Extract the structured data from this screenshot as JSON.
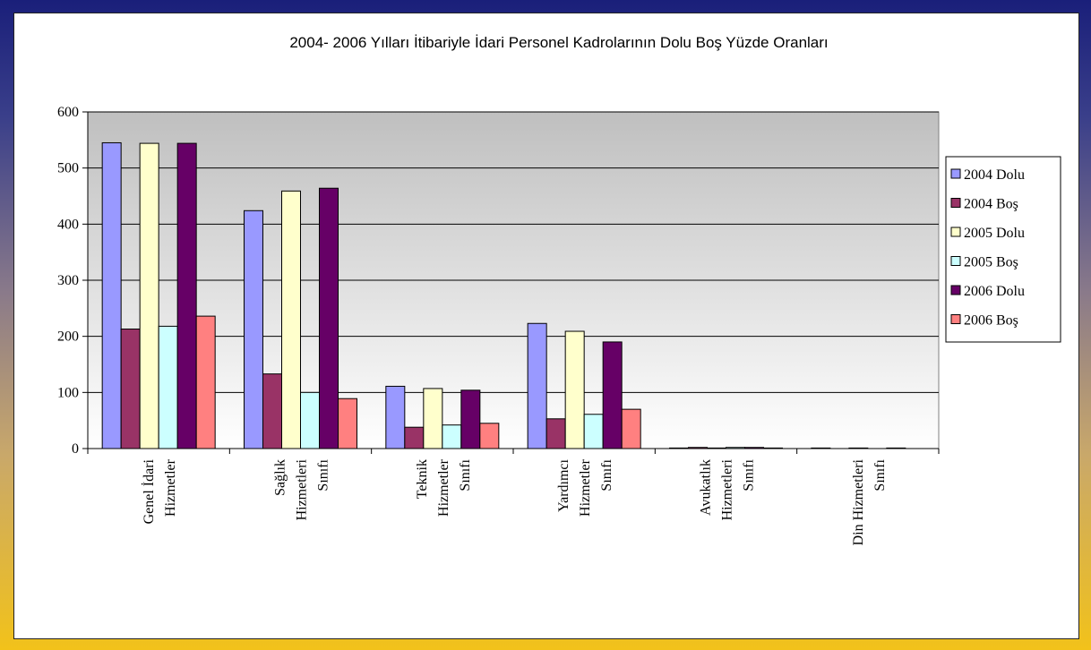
{
  "chart_data": {
    "type": "bar",
    "title": "2004- 2006 Yılları İtibariyle İdari Personel Kadrolarının  Dolu Boş Yüzde Oranları",
    "xlabel": "",
    "ylabel": "",
    "ylim": [
      0,
      600
    ],
    "yticks": [
      "0",
      "100",
      "200",
      "300",
      "400",
      "500",
      "600"
    ],
    "grid": true,
    "legend_position": "right",
    "categories": [
      [
        "Genel İdari",
        "Hizmetler"
      ],
      [
        "Sağlık",
        "Hizmetleri",
        "Sınıfı"
      ],
      [
        "Teknik",
        "Hizmetler",
        "Sınıfı"
      ],
      [
        "Yardımcı",
        "Hizmetler",
        "Sınıfı"
      ],
      [
        "Avukatlık",
        "Hizmetleri",
        "Sınıfı"
      ],
      [
        "Din Hizmetleri",
        "Sınıfı"
      ]
    ],
    "series": [
      {
        "name": "2004 Dolu",
        "color": "#9999ff",
        "values": [
          545,
          424,
          111,
          223,
          1,
          1
        ]
      },
      {
        "name": "2004 Boş",
        "color": "#993366",
        "values": [
          213,
          133,
          38,
          53,
          2,
          0
        ]
      },
      {
        "name": "2005 Dolu",
        "color": "#ffffcc",
        "values": [
          544,
          459,
          107,
          209,
          1,
          1
        ]
      },
      {
        "name": "2005 Boş",
        "color": "#ccffff",
        "values": [
          218,
          100,
          42,
          61,
          2,
          0
        ]
      },
      {
        "name": "2006 Dolu",
        "color": "#660066",
        "values": [
          544,
          464,
          104,
          190,
          2,
          1
        ]
      },
      {
        "name": "2006 Boş",
        "color": "#ff8080",
        "values": [
          236,
          89,
          45,
          70,
          1,
          0
        ]
      }
    ]
  }
}
